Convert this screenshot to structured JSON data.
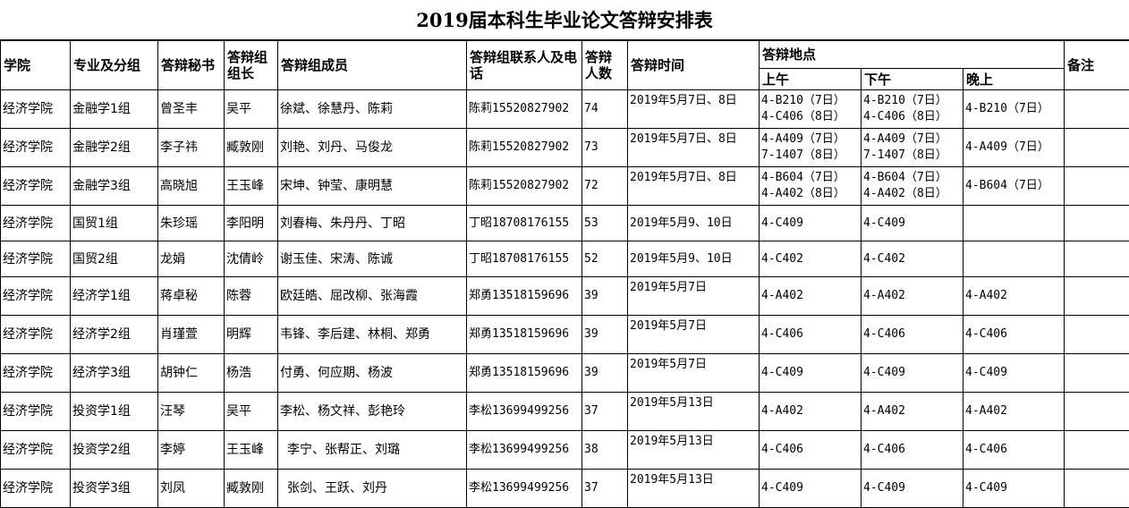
{
  "title": "2019届本科生毕业论文答辩安排表",
  "headers": {
    "college": "学院",
    "major": "专业及分组",
    "secretary": "答辩秘书",
    "leader": "答辩组组长",
    "members": "答辩组成员",
    "contact": "答辩组联系人及电话",
    "count": "答辩人数",
    "time": "答辩时间",
    "location": "答辩地点",
    "morning": "上午",
    "afternoon": "下午",
    "evening": "晚上",
    "notes": "备注"
  },
  "rows": [
    {
      "college": "经济学院",
      "major": "金融学1组",
      "secretary": "曾圣丰",
      "leader": "吴平",
      "members": "徐斌、徐慧丹、陈莉",
      "contact": "陈莉15520827902",
      "count": "74",
      "time": "2019年5月7日、8日",
      "morning": [
        "4-B210（7日）",
        "4-C406（8日）"
      ],
      "afternoon": [
        "4-B210（7日）",
        "4-C406（8日）"
      ],
      "evening": "4-B210（7日）",
      "notes": ""
    },
    {
      "college": "经济学院",
      "major": "金融学2组",
      "secretary": "李子祎",
      "leader": "臧敦刚",
      "members": "刘艳、刘丹、马俊龙",
      "contact": "陈莉15520827902",
      "count": "73",
      "time": "2019年5月7日、8日",
      "morning": [
        "4-A409（7日）",
        "7-1407（8日）"
      ],
      "afternoon": [
        "4-A409（7日）",
        "7-1407（8日）"
      ],
      "evening": "4-A409（7日）",
      "notes": ""
    },
    {
      "college": "经济学院",
      "major": "金融学3组",
      "secretary": "高晓旭",
      "leader": "王玉峰",
      "members": "宋坤、钟莹、康明慧",
      "contact": "陈莉15520827902",
      "count": "72",
      "time": "2019年5月7日、8日",
      "morning": [
        "4-B604（7日）",
        "4-A402（8日）"
      ],
      "afternoon": [
        "4-B604（7日）",
        "4-A402（8日）"
      ],
      "evening": "4-B604（7日）",
      "notes": ""
    },
    {
      "college": "经济学院",
      "major": "国贸1组",
      "secretary": "朱珍瑶",
      "leader": "李阳明",
      "members": "刘春梅、朱丹丹、丁昭",
      "contact": "丁昭18708176155",
      "count": "53",
      "time": "2019年5月9、10日",
      "morning": [
        "4-C409"
      ],
      "afternoon": [
        "4-C409"
      ],
      "evening": "",
      "notes": ""
    },
    {
      "college": "经济学院",
      "major": "国贸2组",
      "secretary": "龙娟",
      "leader": "沈倩岭",
      "members": "谢玉佳、宋涛、陈诚",
      "contact": "丁昭18708176155",
      "count": "52",
      "time": "2019年5月9、10日",
      "morning": [
        "4-C402"
      ],
      "afternoon": [
        "4-C402"
      ],
      "evening": "",
      "notes": ""
    },
    {
      "college": "经济学院",
      "major": "经济学1组",
      "secretary": "蒋卓秘",
      "leader": "陈蓉",
      "members": "欧廷皓、屈改柳、张海霞",
      "contact": "郑勇13518159696",
      "count": "39",
      "time": "2019年5月7日",
      "morning": [
        "4-A402"
      ],
      "afternoon": [
        "4-A402"
      ],
      "evening": "4-A402",
      "notes": ""
    },
    {
      "college": "经济学院",
      "major": "经济学2组",
      "secretary": "肖瑾萱",
      "leader": "明辉",
      "members": "韦锋、李后建、林桐、郑勇",
      "contact": "郑勇13518159696",
      "count": "39",
      "time": "2019年5月7日",
      "morning": [
        "4-C406"
      ],
      "afternoon": [
        "4-C406"
      ],
      "evening": "4-C406",
      "notes": ""
    },
    {
      "college": "经济学院",
      "major": "经济学3组",
      "secretary": "胡钟仁",
      "leader": "杨浩",
      "members": "付勇、何应期、杨波",
      "contact": "郑勇13518159696",
      "count": "39",
      "time": "2019年5月7日",
      "morning": [
        "4-C409"
      ],
      "afternoon": [
        "4-C409"
      ],
      "evening": "4-C409",
      "notes": ""
    },
    {
      "college": "经济学院",
      "major": "投资学1组",
      "secretary": "汪琴",
      "leader": "吴平",
      "members": "李松、杨文祥、彭艳玲",
      "contact": "李松13699499256",
      "count": "37",
      "time": "2019年5月13日",
      "morning": [
        "4-A402"
      ],
      "afternoon": [
        "4-A402"
      ],
      "evening": "4-A402",
      "notes": ""
    },
    {
      "college": "经济学院",
      "major": "投资学2组",
      "secretary": "李婷",
      "leader": "王玉峰",
      "members": "李宁、张帮正、刘璐",
      "contact": "李松13699499256",
      "count": "38",
      "time": "2019年5月13日",
      "morning": [
        "4-C406"
      ],
      "afternoon": [
        "4-C406"
      ],
      "evening": "4-C406",
      "notes": ""
    },
    {
      "college": "经济学院",
      "major": "投资学3组",
      "secretary": "刘凤",
      "leader": "臧敦刚",
      "members": "张剑、王跃、刘丹",
      "contact": "李松13699499256",
      "count": "37",
      "time": "2019年5月13日",
      "morning": [
        "4-C409"
      ],
      "afternoon": [
        "4-C409"
      ],
      "evening": "4-C409",
      "notes": ""
    }
  ]
}
